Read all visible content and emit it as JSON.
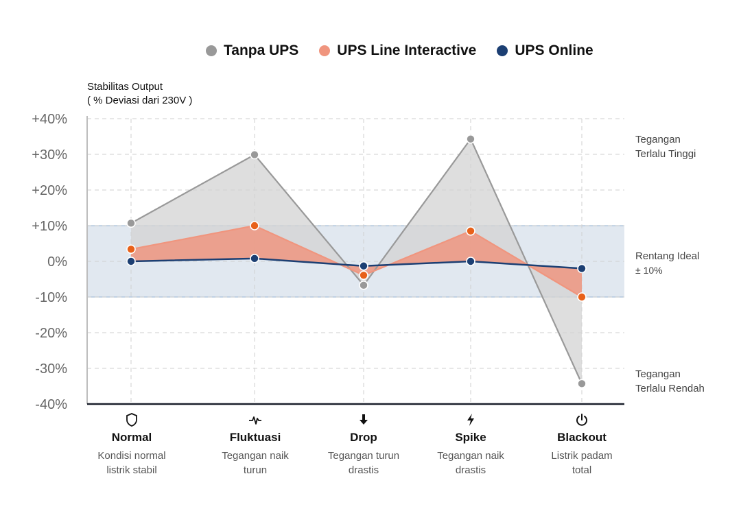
{
  "legend": [
    {
      "label": "Tanpa UPS",
      "color": "#999999"
    },
    {
      "label": "UPS Line Interactive",
      "color": "#f0957e"
    },
    {
      "label": "UPS Online",
      "color": "#1c3f73"
    }
  ],
  "y_axis_title": {
    "line1": "Stabilitas Output",
    "line2": "( % Deviasi dari 230V )"
  },
  "zone_labels": [
    {
      "line1": "Tegangan",
      "line2": "Terlalu Tinggi"
    },
    {
      "line1": "Rentang Ideal",
      "line2": "± 10%"
    },
    {
      "line1": "Tegangan",
      "line2": "Terlalu Rendah"
    }
  ],
  "categories": [
    {
      "icon": "shield-icon",
      "glyph": "🛡",
      "name": "Normal",
      "desc1": "Kondisi normal",
      "desc2": "listrik stabil"
    },
    {
      "icon": "pulse-icon",
      "glyph": "∿",
      "name": "Fluktuasi",
      "desc1": "Tegangan naik",
      "desc2": "turun"
    },
    {
      "icon": "arrow-down-icon",
      "glyph": "⬇",
      "name": "Drop",
      "desc1": "Tegangan turun",
      "desc2": "drastis"
    },
    {
      "icon": "lightning-icon",
      "glyph": "⚡",
      "name": "Spike",
      "desc1": "Tegangan naik",
      "desc2": "drastis"
    },
    {
      "icon": "power-icon",
      "glyph": "⏻",
      "name": "Blackout",
      "desc1": "Listrik padam",
      "desc2": "total"
    }
  ],
  "chart_data": {
    "type": "line",
    "categories": [
      "Normal",
      "Fluktuasi",
      "Drop",
      "Spike",
      "Blackout"
    ],
    "ylim": [
      -40,
      40
    ],
    "yticks": [
      40,
      30,
      20,
      10,
      0,
      -10,
      -20,
      -30,
      -40
    ],
    "ytick_labels": [
      "+40%",
      "+30%",
      "+20%",
      "+10%",
      "0%",
      "-10%",
      "-20%",
      "-30%",
      "-40%"
    ],
    "ideal_range": [
      -10,
      10
    ],
    "grid": true,
    "legend_position": "top",
    "series": [
      {
        "name": "Tanpa UPS",
        "color": "#999999",
        "fill": "#d3d3d3",
        "values": [
          10.7,
          29.9,
          -6.7,
          34.3,
          -34.3
        ]
      },
      {
        "name": "UPS Line Interactive",
        "color": "#f0957e",
        "marker": "#e8611a",
        "fill": "#ef9680",
        "values": [
          3.4,
          10.0,
          -3.9,
          8.5,
          -10.0
        ]
      },
      {
        "name": "UPS Online",
        "color": "#1c3f73",
        "values": [
          0,
          0.8,
          -1.3,
          0,
          -2.0
        ]
      }
    ]
  }
}
